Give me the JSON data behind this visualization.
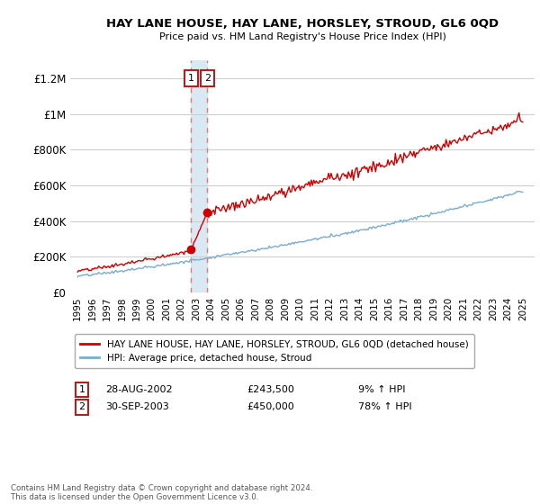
{
  "title": "HAY LANE HOUSE, HAY LANE, HORSLEY, STROUD, GL6 0QD",
  "subtitle": "Price paid vs. HM Land Registry's House Price Index (HPI)",
  "ylim": [
    0,
    1300000
  ],
  "yticks": [
    0,
    200000,
    400000,
    600000,
    800000,
    1000000,
    1200000
  ],
  "ytick_labels": [
    "£0",
    "£200K",
    "£400K",
    "£600K",
    "£800K",
    "£1M",
    "£1.2M"
  ],
  "transaction1_year": 2002.65,
  "transaction1_price": 243500,
  "transaction1_label": "1",
  "transaction1_date": "28-AUG-2002",
  "transaction1_amount": "£243,500",
  "transaction1_hpi": "9% ↑ HPI",
  "transaction2_year": 2003.75,
  "transaction2_price": 450000,
  "transaction2_label": "2",
  "transaction2_date": "30-SEP-2003",
  "transaction2_amount": "£450,000",
  "transaction2_hpi": "78% ↑ HPI",
  "line_house_color": "#cc0000",
  "line_hpi_color": "#7aadcf",
  "dashed_line_color": "#e87777",
  "highlight_color": "#d0e4f0",
  "legend_house_label": "HAY LANE HOUSE, HAY LANE, HORSLEY, STROUD, GL6 0QD (detached house)",
  "legend_hpi_label": "HPI: Average price, detached house, Stroud",
  "footnote": "Contains HM Land Registry data © Crown copyright and database right 2024.\nThis data is licensed under the Open Government Licence v3.0.",
  "background_color": "#ffffff",
  "grid_color": "#cccccc"
}
